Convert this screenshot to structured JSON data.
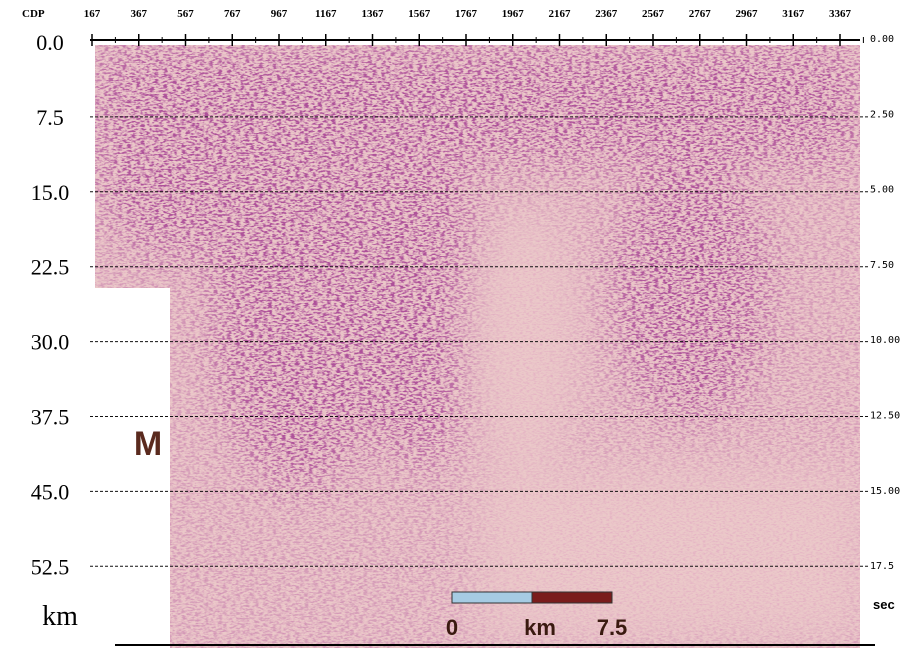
{
  "top_axis": {
    "title": "CDP",
    "labels": [
      "167",
      "367",
      "567",
      "767",
      "967",
      "1167",
      "1367",
      "1567",
      "1767",
      "1967",
      "2167",
      "2367",
      "2567",
      "2767",
      "2967",
      "3167",
      "3367"
    ]
  },
  "left_axis": {
    "labels": [
      "0.0",
      "7.5",
      "15.0",
      "22.5",
      "30.0",
      "37.5",
      "45.0",
      "52.5"
    ],
    "unit": "km"
  },
  "right_axis": {
    "labels": [
      "0.00",
      "2.50",
      "5.00",
      "7.50",
      "10.00",
      "12.50",
      "15.00",
      "17.5"
    ],
    "unit": "sec"
  },
  "scale_bar": {
    "start": "0",
    "unit": "km",
    "end": "7.5"
  },
  "annotation": "M"
}
